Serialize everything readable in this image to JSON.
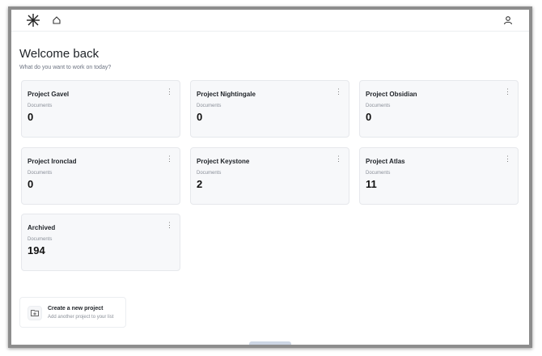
{
  "header": {
    "logo": "asterisk-logo",
    "home_icon": "home-icon",
    "user_icon": "user-icon"
  },
  "welcome": {
    "title": "Welcome back",
    "subtitle": "What do you want to work on today?"
  },
  "projects": [
    {
      "name": "Project Gavel",
      "label": "Documents",
      "count": "0"
    },
    {
      "name": "Project Nightingale",
      "label": "Documents",
      "count": "0"
    },
    {
      "name": "Project Obsidian",
      "label": "Documents",
      "count": "0"
    },
    {
      "name": "Project Ironclad",
      "label": "Documents",
      "count": "0"
    },
    {
      "name": "Project Keystone",
      "label": "Documents",
      "count": "2"
    },
    {
      "name": "Project Atlas",
      "label": "Documents",
      "count": "11"
    },
    {
      "name": "Archived",
      "label": "Documents",
      "count": "194"
    }
  ],
  "create": {
    "title": "Create a new project",
    "subtitle": "Add another project to your list",
    "icon": "folder-plus-icon"
  }
}
